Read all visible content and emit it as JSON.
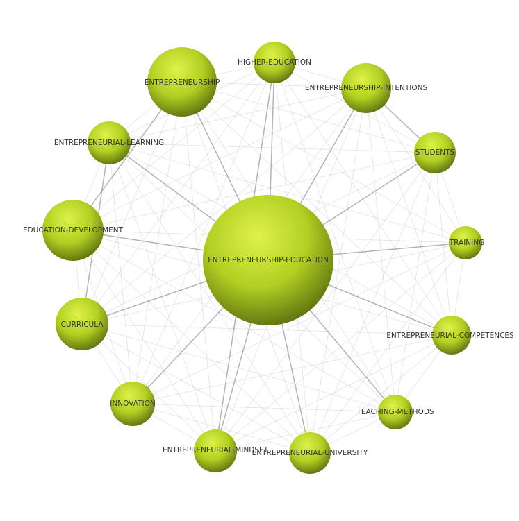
{
  "network": {
    "nodes": [
      {
        "id": "entrepreneurship-education",
        "label": "ENTREPRENEURSHIP-EDUCATION"
      },
      {
        "id": "entrepreneurship",
        "label": "ENTREPRENEURSHIP"
      },
      {
        "id": "higher-education",
        "label": "HIGHER-EDUCATION"
      },
      {
        "id": "entrepreneurship-intentions",
        "label": "ENTREPRENEURSHIP-INTENTIONS"
      },
      {
        "id": "students",
        "label": "STUDENTS"
      },
      {
        "id": "training",
        "label": "TRAINING"
      },
      {
        "id": "entrepreneurial-competences",
        "label": "ENTREPRENEURIAL-COMPETENCES"
      },
      {
        "id": "teaching-methods",
        "label": "TEACHING-METHODS"
      },
      {
        "id": "entrepreneurial-university",
        "label": "ENTREPRENEURIAL-UNIVERSITY"
      },
      {
        "id": "entrepreneurial-mindset",
        "label": "ENTREPRENEURIAL-MINDSET"
      },
      {
        "id": "innovation",
        "label": "INNOVATION"
      },
      {
        "id": "curricula",
        "label": "CURRICULA"
      },
      {
        "id": "education-development",
        "label": "EDUCATION-DEVELOPMENT"
      },
      {
        "id": "entrepreneurial-learning",
        "label": "ENTREPRENEURIAL-LEARNING"
      }
    ],
    "colors": {
      "node_light": "#d4ec3c",
      "node_mid": "#a6c420",
      "node_dark": "#5f7410",
      "edge": "#9a9a9a"
    }
  }
}
